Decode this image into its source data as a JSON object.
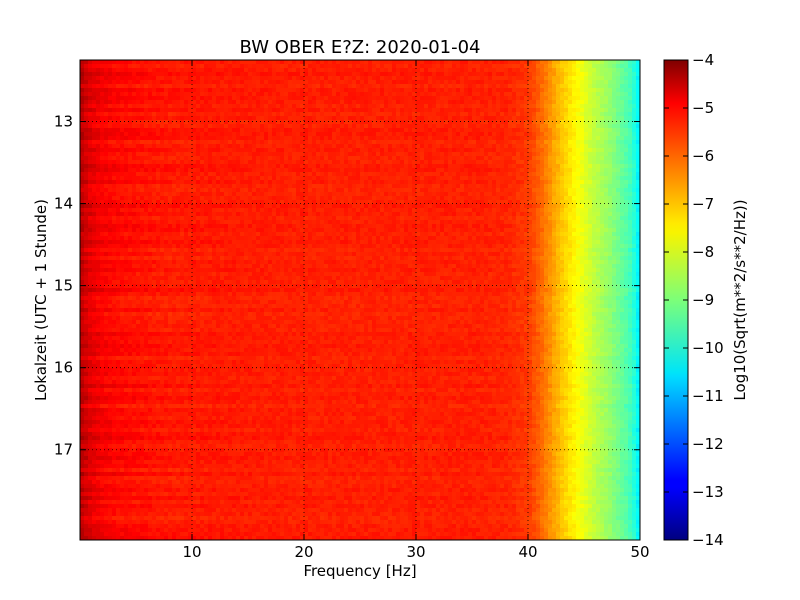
{
  "chart_data": {
    "type": "heatmap",
    "title": "BW OBER E?Z: 2020-01-04",
    "xlabel": "Frequency [Hz]",
    "ylabel": "Lokalzeit (UTC + 1 Stunde)",
    "xlim": [
      0,
      50
    ],
    "ylim": [
      12.25,
      18.1
    ],
    "y_inverted": true,
    "x_ticks": [
      10,
      20,
      30,
      40,
      50
    ],
    "x_tick_labels": [
      "10",
      "20",
      "30",
      "40",
      "50"
    ],
    "y_ticks": [
      13,
      14,
      15,
      16,
      17
    ],
    "y_tick_labels": [
      "13",
      "14",
      "15",
      "16",
      "17"
    ],
    "grid": true,
    "colormap": "jet",
    "colorbar": {
      "label": "Log10(Sqrt(m**2/s**2/Hz))",
      "range": [
        -14,
        -4
      ],
      "ticks": [
        -4,
        -5,
        -6,
        -7,
        -8,
        -9,
        -10,
        -11,
        -12,
        -13,
        -14
      ],
      "tick_labels": [
        "−4",
        "−5",
        "−6",
        "−7",
        "−8",
        "−9",
        "−10",
        "−11",
        "−12",
        "−13",
        "−14"
      ]
    },
    "frequency_profile": {
      "frequency_hz": [
        0,
        0.5,
        1,
        2,
        3,
        5,
        8,
        12,
        20,
        30,
        35,
        38,
        40,
        41,
        42,
        43,
        44,
        45,
        46,
        47,
        48,
        49,
        49.5,
        50
      ],
      "log10_amplitude": [
        -4.6,
        -4.8,
        -5.0,
        -5.2,
        -5.3,
        -5.4,
        -5.5,
        -5.5,
        -5.55,
        -5.55,
        -5.55,
        -5.6,
        -5.8,
        -6.2,
        -6.7,
        -7.2,
        -7.6,
        -8.0,
        -8.4,
        -8.7,
        -9.1,
        -9.5,
        -9.9,
        -10.5
      ]
    }
  }
}
